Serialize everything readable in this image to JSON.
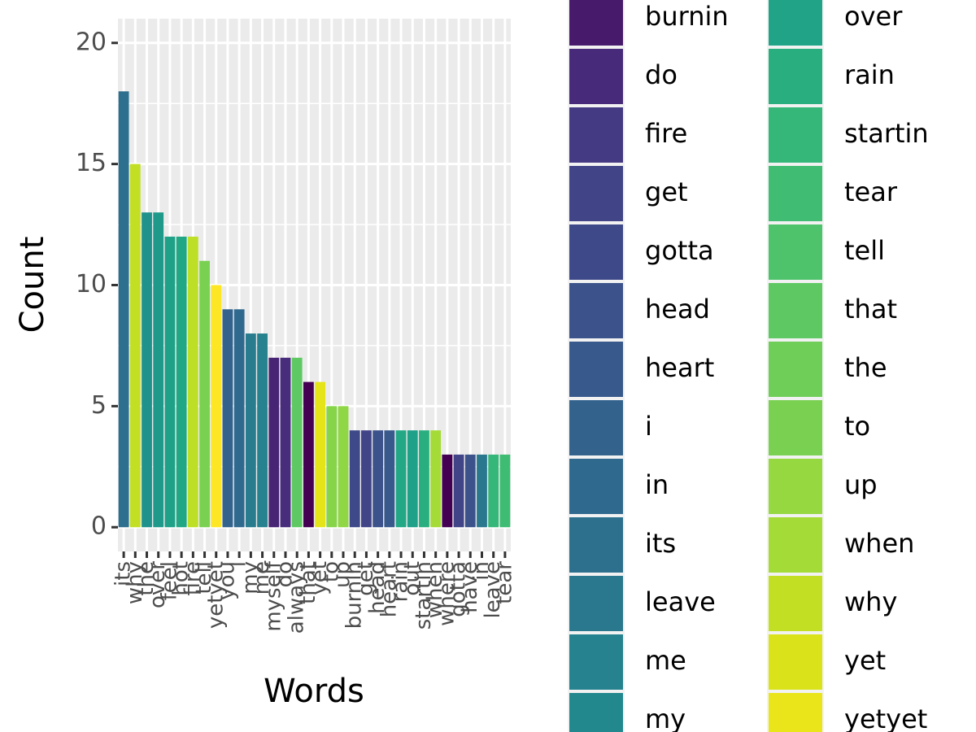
{
  "chart_data": {
    "type": "bar",
    "x_label": "Words",
    "y_label": "Count",
    "categories": [
      "its",
      "why",
      "the",
      "over",
      "feel",
      "hot",
      "fire",
      "tell",
      "yetyet",
      "you",
      "i",
      "my",
      "me",
      "myself",
      "do",
      "always",
      "that",
      "yet",
      "to",
      "up",
      "burnin",
      "get",
      "head",
      "heart",
      "rain",
      "out",
      "startin",
      "when",
      "where",
      "gotta",
      "have",
      "in",
      "leave",
      "tear"
    ],
    "values": [
      18,
      15,
      13,
      13,
      12,
      12,
      12,
      11,
      10,
      9,
      9,
      8,
      8,
      7,
      7,
      7,
      6,
      6,
      5,
      5,
      4,
      4,
      4,
      4,
      4,
      4,
      4,
      4,
      3,
      3,
      3,
      3,
      3,
      3
    ],
    "colors": [
      "#2d6f8e",
      "#c2df23",
      "#20928c",
      "#1f9a8a",
      "#1fa187",
      "#22a785",
      "#bddf26",
      "#7ad151",
      "#fde725",
      "#33638d",
      "#30698e",
      "#287c8e",
      "#26828e",
      "#482475",
      "#472d7b",
      "#5ec962",
      "#440154",
      "#e5e419",
      "#86d549",
      "#8fd744",
      "#3e4989",
      "#414487",
      "#3b528b",
      "#38598c",
      "#22a884",
      "#1fa088",
      "#29af7f",
      "#a5db36",
      "#440154",
      "#414487",
      "#3b528b",
      "#2a788e",
      "#35b779",
      "#3fbc73"
    ],
    "ylim": [
      -1.0,
      21.0
    ],
    "yticks": [
      0,
      5,
      10,
      15,
      20
    ],
    "grid": true,
    "legend": [
      {
        "name": "burnin",
        "color": "#481a6c"
      },
      {
        "name": "do",
        "color": "#472a7a"
      },
      {
        "name": "fire",
        "color": "#443983"
      },
      {
        "name": "get",
        "color": "#414487"
      },
      {
        "name": "gotta",
        "color": "#3e4989"
      },
      {
        "name": "head",
        "color": "#3b528b"
      },
      {
        "name": "heart",
        "color": "#38598c"
      },
      {
        "name": "i",
        "color": "#33638d"
      },
      {
        "name": "in",
        "color": "#30698e"
      },
      {
        "name": "its",
        "color": "#2d708e"
      },
      {
        "name": "leave",
        "color": "#2a788e"
      },
      {
        "name": "me",
        "color": "#26828e"
      },
      {
        "name": "my",
        "color": "#23888e"
      },
      {
        "name": "over",
        "color": "#20a386"
      },
      {
        "name": "rain",
        "color": "#29af7f"
      },
      {
        "name": "startin",
        "color": "#35b779"
      },
      {
        "name": "tear",
        "color": "#40bd72"
      },
      {
        "name": "tell",
        "color": "#4ec36b"
      },
      {
        "name": "that",
        "color": "#5ec962"
      },
      {
        "name": "the",
        "color": "#6ece58"
      },
      {
        "name": "to",
        "color": "#7ad151"
      },
      {
        "name": "up",
        "color": "#95d840"
      },
      {
        "name": "when",
        "color": "#a5db36"
      },
      {
        "name": "why",
        "color": "#c2df23"
      },
      {
        "name": "yet",
        "color": "#dae319"
      },
      {
        "name": "yetyet",
        "color": "#eae51a"
      }
    ]
  }
}
